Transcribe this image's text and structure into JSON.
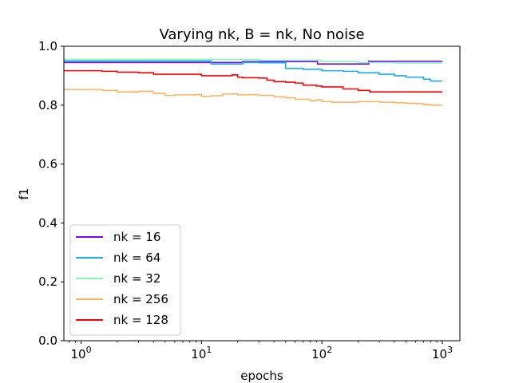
{
  "chart_data": {
    "type": "line",
    "title": "Varying nk, B = nk, No noise",
    "xlabel": "epochs",
    "ylabel": "f1",
    "xscale": "log",
    "xlim": [
      0.72,
      1400
    ],
    "ylim": [
      0.0,
      1.0
    ],
    "xticks": [
      {
        "value": 1,
        "base": "10",
        "exp": "0"
      },
      {
        "value": 10,
        "base": "10",
        "exp": "1"
      },
      {
        "value": 100,
        "base": "10",
        "exp": "2"
      },
      {
        "value": 1000,
        "base": "10",
        "exp": "3"
      }
    ],
    "yticks": [
      {
        "value": 0.0,
        "label": "0.0"
      },
      {
        "value": 0.2,
        "label": "0.2"
      },
      {
        "value": 0.4,
        "label": "0.4"
      },
      {
        "value": 0.6,
        "label": "0.6"
      },
      {
        "value": 0.8,
        "label": "0.8"
      },
      {
        "value": 1.0,
        "label": "1.0"
      }
    ],
    "grid": false,
    "legend_position": "lower-left",
    "series": [
      {
        "name": "nk = 16",
        "color": "#8000ff",
        "points": [
          [
            0.72,
            0.945
          ],
          [
            20,
            0.945
          ],
          [
            22,
            0.948
          ],
          [
            90,
            0.948
          ],
          [
            92,
            0.94
          ],
          [
            240,
            0.94
          ],
          [
            245,
            0.949
          ],
          [
            1000,
            0.949
          ]
        ]
      },
      {
        "name": "nk = 64",
        "color": "#1aadea",
        "points": [
          [
            0.72,
            0.95
          ],
          [
            8,
            0.95
          ],
          [
            12,
            0.94
          ],
          [
            20,
            0.94
          ],
          [
            22,
            0.945
          ],
          [
            30,
            0.944
          ],
          [
            50,
            0.925
          ],
          [
            70,
            0.922
          ],
          [
            100,
            0.917
          ],
          [
            150,
            0.915
          ],
          [
            200,
            0.91
          ],
          [
            300,
            0.905
          ],
          [
            400,
            0.9
          ],
          [
            500,
            0.895
          ],
          [
            700,
            0.888
          ],
          [
            800,
            0.882
          ],
          [
            1000,
            0.882
          ]
        ]
      },
      {
        "name": "nk = 32",
        "color": "#80ffb4",
        "points": [
          [
            0.72,
            0.955
          ],
          [
            10,
            0.955
          ],
          [
            20,
            0.955
          ],
          [
            30,
            0.952
          ],
          [
            60,
            0.952
          ],
          [
            100,
            0.948
          ],
          [
            200,
            0.945
          ],
          [
            400,
            0.943
          ],
          [
            1000,
            0.942
          ]
        ]
      },
      {
        "name": "nk = 256",
        "color": "#ffb360",
        "points": [
          [
            0.72,
            0.853
          ],
          [
            1.5,
            0.85
          ],
          [
            2,
            0.845
          ],
          [
            3,
            0.847
          ],
          [
            4,
            0.84
          ],
          [
            5,
            0.833
          ],
          [
            6,
            0.835
          ],
          [
            9,
            0.836
          ],
          [
            10,
            0.83
          ],
          [
            12,
            0.832
          ],
          [
            15,
            0.838
          ],
          [
            20,
            0.835
          ],
          [
            25,
            0.836
          ],
          [
            30,
            0.833
          ],
          [
            40,
            0.828
          ],
          [
            50,
            0.825
          ],
          [
            60,
            0.82
          ],
          [
            70,
            0.82
          ],
          [
            80,
            0.815
          ],
          [
            90,
            0.818
          ],
          [
            100,
            0.812
          ],
          [
            120,
            0.81
          ],
          [
            150,
            0.81
          ],
          [
            200,
            0.812
          ],
          [
            300,
            0.81
          ],
          [
            400,
            0.808
          ],
          [
            500,
            0.806
          ],
          [
            600,
            0.805
          ],
          [
            700,
            0.802
          ],
          [
            800,
            0.8
          ],
          [
            1000,
            0.8
          ]
        ]
      },
      {
        "name": "nk = 128",
        "color": "#ff0000",
        "points": [
          [
            0.72,
            0.917
          ],
          [
            1.5,
            0.915
          ],
          [
            2,
            0.912
          ],
          [
            3,
            0.91
          ],
          [
            4,
            0.905
          ],
          [
            6,
            0.905
          ],
          [
            9,
            0.905
          ],
          [
            10,
            0.9
          ],
          [
            15,
            0.9
          ],
          [
            18,
            0.903
          ],
          [
            20,
            0.895
          ],
          [
            22,
            0.893
          ],
          [
            30,
            0.892
          ],
          [
            35,
            0.885
          ],
          [
            40,
            0.88
          ],
          [
            50,
            0.878
          ],
          [
            60,
            0.875
          ],
          [
            70,
            0.868
          ],
          [
            90,
            0.865
          ],
          [
            100,
            0.862
          ],
          [
            130,
            0.862
          ],
          [
            150,
            0.855
          ],
          [
            200,
            0.85
          ],
          [
            250,
            0.845
          ],
          [
            400,
            0.845
          ],
          [
            1000,
            0.845
          ]
        ]
      }
    ]
  }
}
